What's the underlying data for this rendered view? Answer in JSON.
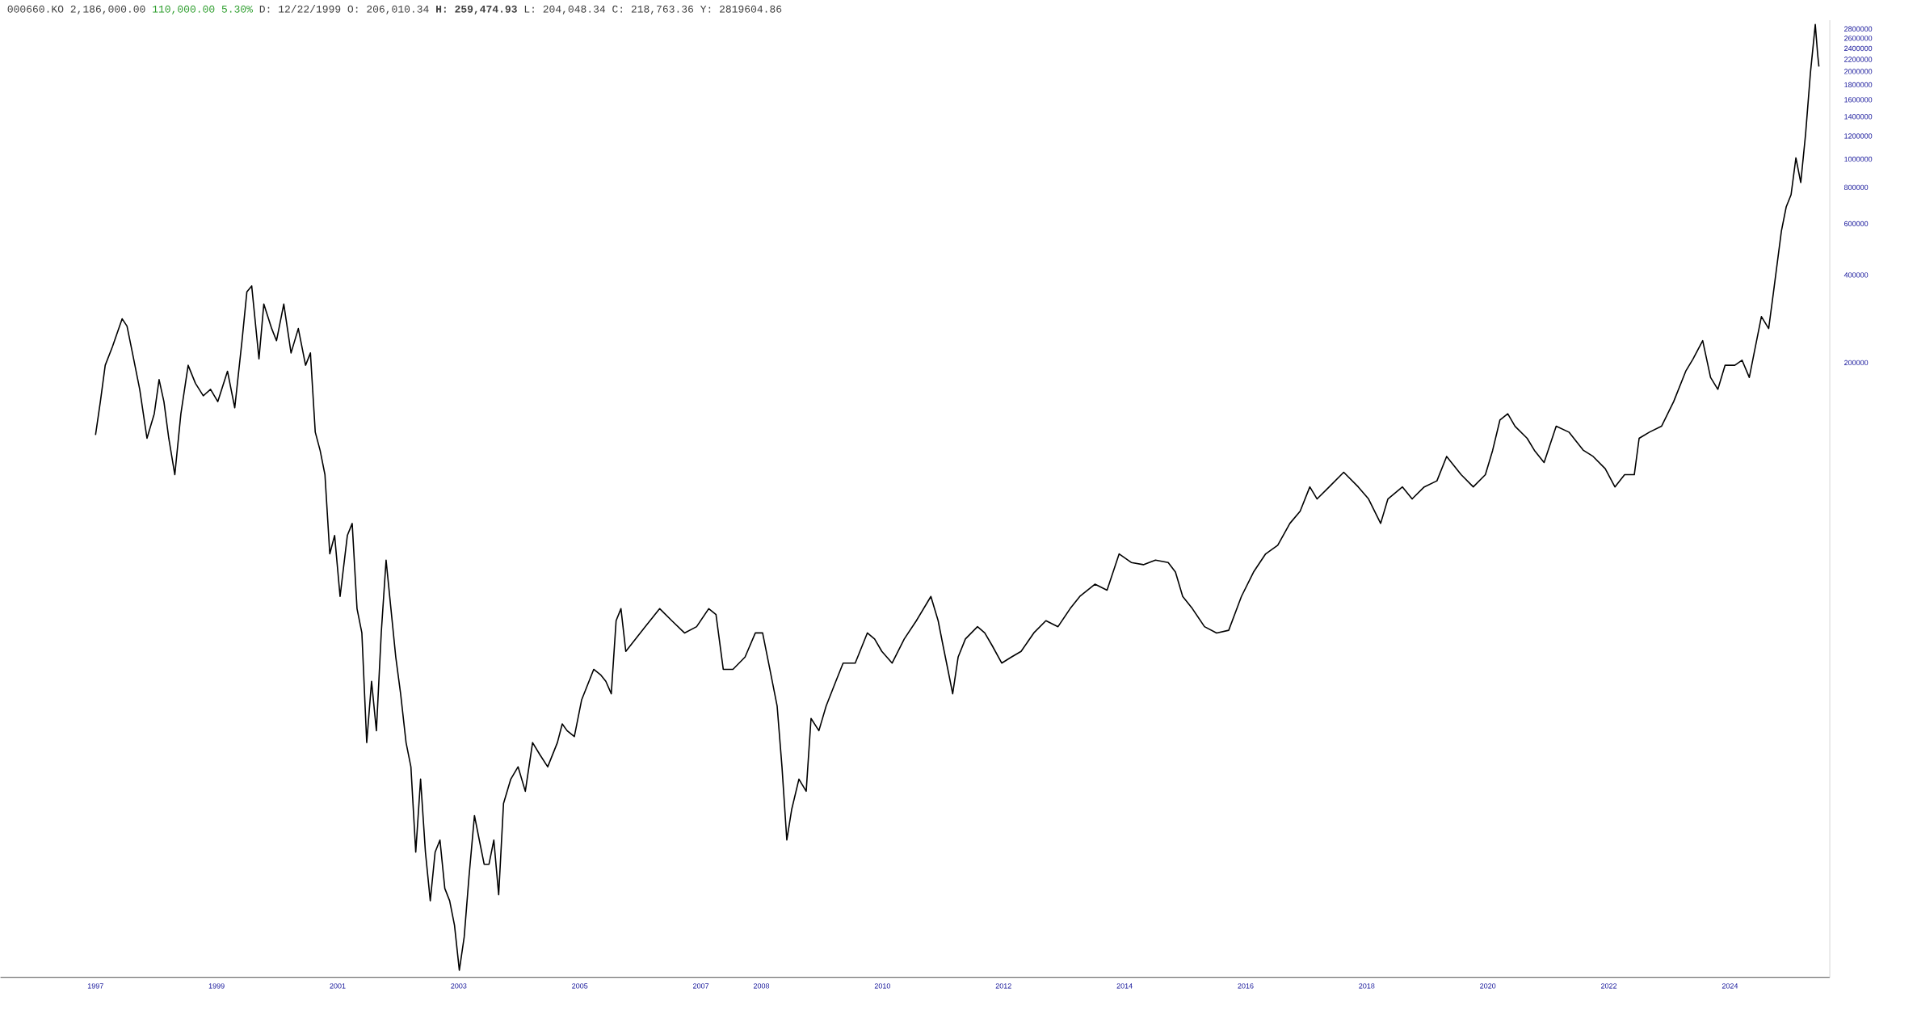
{
  "chart_data": {
    "type": "line",
    "title": "000660.KO 2,186,000.00",
    "subtitle": "110,000.00 5.30%",
    "annotations": [
      "D: 12/22/1999 O: 206,010.34 **H: 259,474.93** L: 204,048.34 C: 218,763.36 Y: 2819604.86"
    ],
    "log": "y",
    "color": "#000000",
    "xlim": [
      1995.43,
      2025.65
    ],
    "ylim": [
      1550,
      3000000
    ],
    "xticks": [
      1997,
      1999,
      2001,
      2003,
      2005,
      2007,
      2008,
      2010,
      2012,
      2014,
      2016,
      2018,
      2020,
      2022,
      2024
    ],
    "yticks": [
      200000,
      400000,
      600000,
      800000,
      1000000,
      1200000,
      1400000,
      1600000,
      1800000,
      2000000,
      2200000,
      2400000,
      2600000,
      2800000
    ],
    "x": [
      1997.0,
      1997.08,
      1997.16,
      1997.28,
      1997.44,
      1997.52,
      1997.61,
      1997.73,
      1997.85,
      1997.97,
      1998.05,
      1998.13,
      1998.21,
      1998.31,
      1998.41,
      1998.53,
      1998.65,
      1998.78,
      1998.9,
      1999.02,
      1999.18,
      1999.3,
      1999.42,
      1999.5,
      1999.58,
      1999.7,
      1999.78,
      1999.91,
      1999.99,
      2000.11,
      2000.23,
      2000.35,
      2000.47,
      2000.55,
      2000.63,
      2000.71,
      2000.79,
      2000.87,
      2000.95,
      2001.04,
      2001.16,
      2001.24,
      2001.32,
      2001.4,
      2001.48,
      2001.56,
      2001.64,
      2001.72,
      2001.8,
      2001.88,
      2001.96,
      2002.04,
      2002.13,
      2002.21,
      2002.29,
      2002.37,
      2002.45,
      2002.53,
      2002.61,
      2002.69,
      2002.77,
      2002.85,
      2002.93,
      2003.01,
      2003.09,
      2003.17,
      2003.26,
      2003.34,
      2003.42,
      2003.5,
      2003.58,
      2003.66,
      2003.74,
      2003.86,
      2003.98,
      2004.1,
      2004.22,
      2004.34,
      2004.47,
      2004.63,
      2004.71,
      2004.79,
      2004.91,
      2005.03,
      2005.11,
      2005.23,
      2005.35,
      2005.43,
      2005.52,
      2005.6,
      2005.68,
      2005.76,
      2005.92,
      2006.08,
      2006.32,
      2006.52,
      2006.73,
      2006.93,
      2007.13,
      2007.25,
      2007.37,
      2007.53,
      2007.73,
      2007.9,
      2008.02,
      2008.14,
      2008.26,
      2008.34,
      2008.42,
      2008.5,
      2008.62,
      2008.74,
      2008.82,
      2008.95,
      2009.07,
      2009.23,
      2009.35,
      2009.55,
      2009.75,
      2009.87,
      2009.99,
      2010.16,
      2010.36,
      2010.56,
      2010.8,
      2010.92,
      2011.0,
      2011.08,
      2011.16,
      2011.25,
      2011.37,
      2011.57,
      2011.69,
      2011.81,
      2011.97,
      2012.13,
      2012.29,
      2012.5,
      2012.7,
      2012.9,
      2013.1,
      2013.26,
      2013.51,
      2013.71,
      2013.91,
      2014.11,
      2014.31,
      2014.51,
      2014.72,
      2014.84,
      2014.96,
      2015.12,
      2015.32,
      2015.52,
      2015.72,
      2015.93,
      2016.13,
      2016.33,
      2016.53,
      2016.73,
      2016.9,
      2017.06,
      2017.18,
      2017.38,
      2017.62,
      2017.86,
      2018.03,
      2018.23,
      2018.35,
      2018.59,
      2018.75,
      2018.95,
      2019.16,
      2019.32,
      2019.56,
      2019.76,
      2019.96,
      2020.08,
      2020.2,
      2020.33,
      2020.45,
      2020.65,
      2020.77,
      2020.93,
      2021.13,
      2021.34,
      2021.58,
      2021.74,
      2021.94,
      2022.1,
      2022.26,
      2022.42,
      2022.5,
      2022.67,
      2022.87,
      2023.07,
      2023.27,
      2023.39,
      2023.55,
      2023.68,
      2023.8,
      2023.92,
      2024.08,
      2024.2,
      2024.32,
      2024.4,
      2024.52,
      2024.64,
      2024.72,
      2024.85,
      2024.93,
      2025.01,
      2025.09,
      2025.17,
      2025.25,
      2025.33,
      2025.41,
      2025.45,
      2025.47
    ],
    "values": [
      113000,
      147000,
      196000,
      227000,
      283000,
      267000,
      216000,
      162000,
      110000,
      133500,
      175000,
      147000,
      110000,
      82500,
      133500,
      196000,
      170000,
      154000,
      162000,
      147000,
      187000,
      140000,
      238000,
      350000,
      367000,
      206000,
      318000,
      262000,
      238000,
      318000,
      216000,
      262000,
      196000,
      216000,
      115500,
      100000,
      82500,
      44100,
      51000,
      31500,
      51000,
      56100,
      28600,
      23600,
      9920,
      16100,
      10900,
      23600,
      42000,
      28600,
      19500,
      14600,
      9920,
      8190,
      4170,
      7430,
      4170,
      2840,
      4170,
      4590,
      3130,
      2840,
      2340,
      1640,
      2130,
      3440,
      5570,
      4590,
      3790,
      3790,
      4590,
      2980,
      6130,
      7430,
      8190,
      6750,
      9920,
      9020,
      8190,
      9920,
      11500,
      10900,
      10400,
      13900,
      15300,
      17700,
      16900,
      16100,
      14600,
      26000,
      28600,
      20400,
      22500,
      24800,
      28600,
      26000,
      23600,
      24800,
      28600,
      27300,
      17700,
      17700,
      19500,
      23600,
      23600,
      17700,
      13250,
      8190,
      4590,
      5840,
      7430,
      6750,
      12000,
      10900,
      13250,
      16100,
      18600,
      18600,
      23600,
      22500,
      20400,
      18600,
      22500,
      26000,
      31500,
      26000,
      21400,
      17700,
      14600,
      19500,
      22500,
      24800,
      23600,
      21400,
      18600,
      19500,
      20400,
      23600,
      26000,
      24800,
      28600,
      31500,
      34700,
      33100,
      44100,
      41200,
      40500,
      42000,
      41200,
      38200,
      31500,
      28600,
      24800,
      23600,
      24100,
      31500,
      38200,
      44100,
      47200,
      56100,
      61800,
      74900,
      68100,
      74900,
      84100,
      74900,
      68100,
      56100,
      68100,
      74900,
      68100,
      74900,
      78600,
      95300,
      82500,
      74900,
      82500,
      100000,
      127000,
      133500,
      121000,
      110000,
      100000,
      90800,
      121000,
      115500,
      100000,
      95300,
      86500,
      74900,
      82500,
      82500,
      110000,
      115500,
      121000,
      147000,
      187000,
      206000,
      238000,
      178000,
      162000,
      196000,
      196000,
      204000,
      178000,
      216000,
      288000,
      262000,
      350000,
      566000,
      686000,
      755000,
      1010000,
      831000,
      1220000,
      1980000,
      2900000,
      2280000,
      2080000
    ]
  }
}
